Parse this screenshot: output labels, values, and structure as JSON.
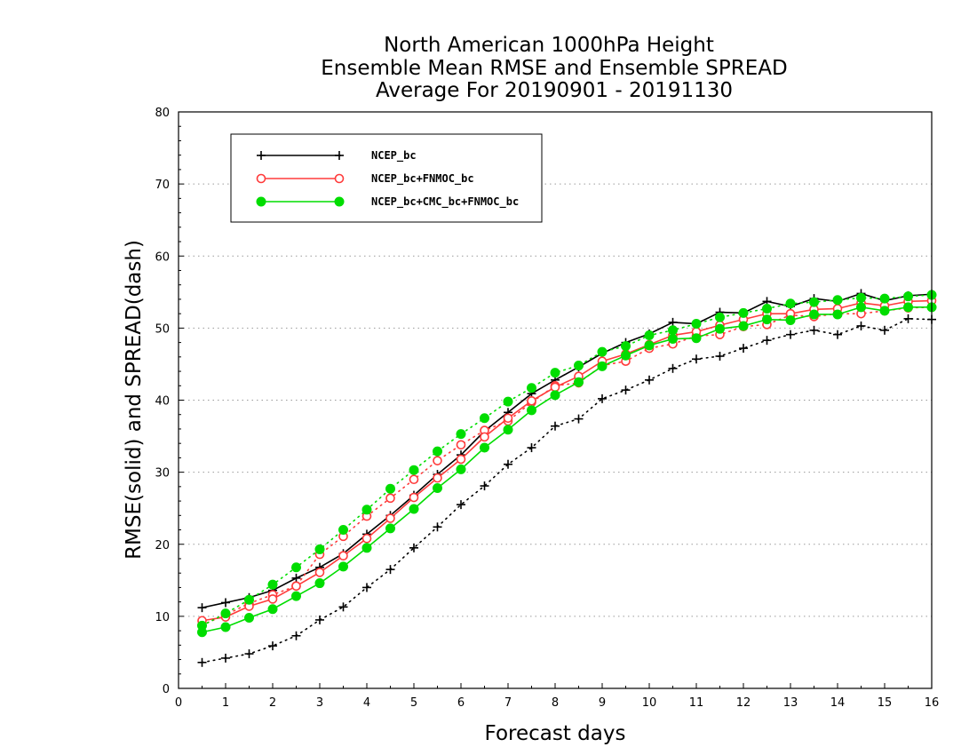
{
  "chart_data": {
    "type": "line",
    "title": [
      "North American 1000hPa Height",
      "Ensemble Mean RMSE and Ensemble SPREAD",
      "Average For 20190901 - 20191130"
    ],
    "xlabel": "Forecast days",
    "ylabel": "RMSE(solid) and SPREAD(dash)",
    "xlim": [
      0,
      16
    ],
    "ylim": [
      0,
      80
    ],
    "xticks": [
      "0",
      "1",
      "2",
      "3",
      "4",
      "5",
      "6",
      "7",
      "8",
      "9",
      "10",
      "11",
      "12",
      "13",
      "14",
      "15",
      "16"
    ],
    "yticks": [
      "0",
      "10",
      "20",
      "30",
      "40",
      "50",
      "60",
      "70",
      "80"
    ],
    "grid": "dotted horizontal",
    "legend_position": "top-left",
    "x": [
      0.5,
      1,
      1.5,
      2,
      2.5,
      3,
      3.5,
      4,
      4.5,
      5,
      5.5,
      6,
      6.5,
      7,
      7.5,
      8,
      8.5,
      9,
      9.5,
      10,
      10.5,
      11,
      11.5,
      12,
      12.5,
      13,
      13.5,
      14,
      14.5,
      15,
      15.5,
      16
    ],
    "series": [
      {
        "name": "NCEP_bc",
        "color": "#000000",
        "marker": "plus",
        "rmse": [
          11.2,
          11.9,
          12.6,
          13.6,
          15.3,
          16.8,
          18.7,
          21.4,
          24.0,
          26.8,
          29.7,
          32.4,
          35.7,
          38.3,
          40.9,
          42.8,
          44.6,
          46.5,
          48.0,
          49.2,
          50.8,
          50.6,
          52.2,
          52.1,
          53.7,
          53.0,
          54.1,
          53.7,
          54.8,
          53.8,
          54.5,
          54.7
        ],
        "spread": [
          3.6,
          4.2,
          4.8,
          5.9,
          7.3,
          9.5,
          11.3,
          14.0,
          16.5,
          19.5,
          22.4,
          25.5,
          28.1,
          31.1,
          33.4,
          36.4,
          37.4,
          40.2,
          41.4,
          42.8,
          44.4,
          45.7,
          46.1,
          47.2,
          48.3,
          49.1,
          49.7,
          49.1,
          50.3,
          49.7,
          51.3,
          51.2
        ]
      },
      {
        "name": "NCEP_bc+FNMOC_bc",
        "color": "#ff3b3b",
        "marker": "circle-open",
        "rmse": [
          9.4,
          9.9,
          11.4,
          12.4,
          14.2,
          16.1,
          18.4,
          20.8,
          23.6,
          26.5,
          29.2,
          31.8,
          34.9,
          37.5,
          39.9,
          41.8,
          43.3,
          45.4,
          46.4,
          47.7,
          49.0,
          49.5,
          50.4,
          51.2,
          52.0,
          52.0,
          52.6,
          52.7,
          53.5,
          53.1,
          53.7,
          53.8
        ],
        "spread": [
          8.8,
          10.2,
          11.8,
          13.0,
          14.2,
          18.6,
          21.1,
          23.9,
          26.4,
          29.0,
          31.6,
          33.8,
          35.8,
          37.1,
          39.7,
          42.0,
          42.4,
          44.8,
          45.4,
          47.2,
          47.8,
          48.9,
          49.1,
          50.2,
          50.5,
          51.8,
          51.6,
          52.0,
          52.0,
          52.4,
          52.8,
          52.9
        ]
      },
      {
        "name": "NCEP_bc+CMC_bc+FNMOC_bc",
        "color": "#00dd00",
        "marker": "circle-filled",
        "rmse": [
          7.8,
          8.5,
          9.8,
          11.0,
          12.8,
          14.6,
          16.9,
          19.5,
          22.2,
          24.9,
          27.8,
          30.4,
          33.4,
          35.9,
          38.6,
          40.7,
          42.5,
          44.7,
          46.2,
          47.6,
          48.5,
          48.6,
          49.9,
          50.3,
          51.2,
          51.1,
          51.9,
          51.9,
          52.9,
          52.4,
          52.9,
          52.9
        ],
        "spread": [
          8.7,
          10.4,
          12.3,
          14.4,
          16.8,
          19.3,
          22.0,
          24.8,
          27.7,
          30.3,
          32.9,
          35.3,
          37.5,
          39.8,
          41.7,
          43.8,
          44.8,
          46.7,
          47.5,
          49.0,
          49.7,
          50.6,
          51.5,
          52.1,
          52.7,
          53.4,
          53.6,
          53.9,
          54.2,
          54.1,
          54.4,
          54.6
        ]
      }
    ]
  }
}
